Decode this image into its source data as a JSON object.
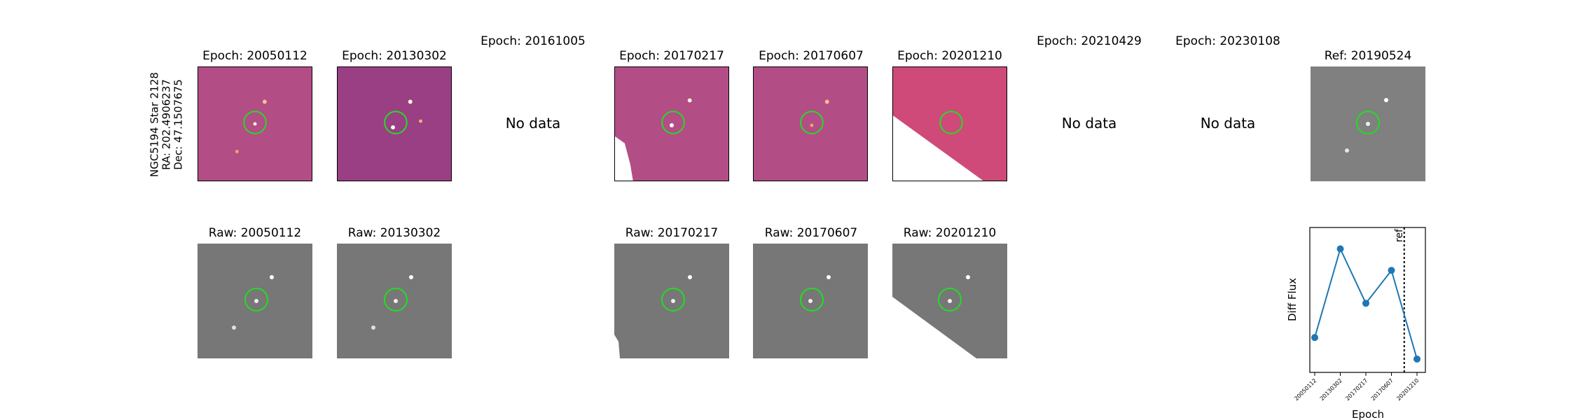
{
  "target_label": {
    "line1": "NGC5194 Star 2128",
    "line2": "RA: 202.4906237",
    "line3": "Dec: 47.1507675"
  },
  "top_row": [
    {
      "title": "Epoch: 20050112",
      "has_data": true
    },
    {
      "title": "Epoch: 20130302",
      "has_data": true
    },
    {
      "title": "Epoch: 20161005",
      "has_data": false,
      "message": "No data"
    },
    {
      "title": "Epoch: 20170217",
      "has_data": true
    },
    {
      "title": "Epoch: 20170607",
      "has_data": true
    },
    {
      "title": "Epoch: 20201210",
      "has_data": true
    },
    {
      "title": "Epoch: 20210429",
      "has_data": false,
      "message": "No data"
    },
    {
      "title": "Epoch: 20230108",
      "has_data": false,
      "message": "No data"
    },
    {
      "title": "Ref: 20190524",
      "has_data": true
    }
  ],
  "bottom_row": [
    {
      "title": "Raw: 20050112"
    },
    {
      "title": "Raw: 20130302"
    },
    {
      "title": "Raw: 20170217"
    },
    {
      "title": "Raw: 20170607"
    },
    {
      "title": "Raw: 20201210"
    }
  ],
  "colors": {
    "diff_background": "#b34d86",
    "raw_background": "#777777",
    "marker_circle": "#22dd22",
    "series_line": "#1f77b4"
  },
  "chart_data": {
    "type": "line",
    "title": "",
    "xlabel": "Epoch",
    "ylabel": "Diff Flux",
    "categories": [
      "20050112",
      "20130302",
      "20170217",
      "20170607",
      "20201210"
    ],
    "values": [
      0.22,
      0.92,
      0.49,
      0.75,
      0.05
    ],
    "ylim": [
      0,
      1
    ],
    "ref_line": {
      "label": "ref",
      "position_between": [
        "20170607",
        "20201210"
      ],
      "x_value": 3.5
    },
    "yticks_shown": false
  }
}
